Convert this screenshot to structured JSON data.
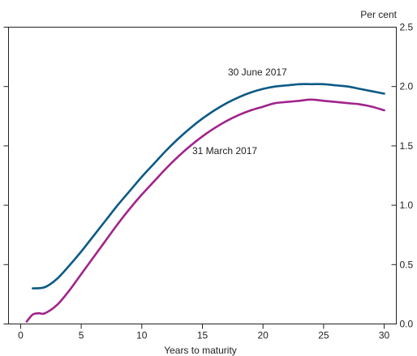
{
  "chart_data": {
    "type": "line",
    "xlabel": "Years to maturity",
    "ylabel": "Per cent",
    "xlim": [
      -1,
      31
    ],
    "ylim": [
      0,
      2.5
    ],
    "x_ticks": [
      0,
      5,
      10,
      15,
      20,
      25,
      30
    ],
    "x_tick_labels": [
      "0",
      "5",
      "10",
      "15",
      "20",
      "25",
      "30"
    ],
    "y_ticks": [
      0.0,
      0.5,
      1.0,
      1.5,
      2.0,
      2.5
    ],
    "y_tick_labels": [
      "0.0",
      "0.5",
      "1.0",
      "1.5",
      "2.0",
      "2.5"
    ],
    "y_axis_side": "right",
    "grid": false,
    "series": [
      {
        "name": "30 June 2017",
        "color": "#0b5a85",
        "x": [
          1,
          2,
          3,
          4,
          5,
          6,
          7,
          8,
          9,
          10,
          11,
          12,
          13,
          14,
          15,
          16,
          17,
          18,
          19,
          20,
          21,
          22,
          23,
          24,
          25,
          26,
          27,
          28,
          29,
          30
        ],
        "y": [
          0.3,
          0.31,
          0.38,
          0.49,
          0.61,
          0.74,
          0.87,
          1.0,
          1.12,
          1.24,
          1.35,
          1.46,
          1.56,
          1.65,
          1.73,
          1.8,
          1.86,
          1.91,
          1.95,
          1.98,
          2.0,
          2.01,
          2.02,
          2.02,
          2.02,
          2.01,
          2.0,
          1.98,
          1.96,
          1.94
        ]
      },
      {
        "name": "31 March 2017",
        "color": "#a1238b",
        "x": [
          0.5,
          1,
          1.5,
          2,
          3,
          4,
          5,
          6,
          7,
          8,
          9,
          10,
          11,
          12,
          13,
          14,
          15,
          16,
          17,
          18,
          19,
          20,
          21,
          22,
          23,
          24,
          25,
          26,
          27,
          28,
          29,
          30
        ],
        "y": [
          0.02,
          0.08,
          0.09,
          0.09,
          0.16,
          0.28,
          0.42,
          0.56,
          0.7,
          0.84,
          0.97,
          1.09,
          1.2,
          1.31,
          1.41,
          1.5,
          1.58,
          1.65,
          1.71,
          1.76,
          1.8,
          1.83,
          1.86,
          1.87,
          1.88,
          1.89,
          1.88,
          1.87,
          1.86,
          1.85,
          1.83,
          1.8
        ]
      }
    ],
    "annotations": [
      {
        "text": "30 June 2017",
        "series": 0
      },
      {
        "text": "31 March 2017",
        "series": 1
      }
    ]
  }
}
